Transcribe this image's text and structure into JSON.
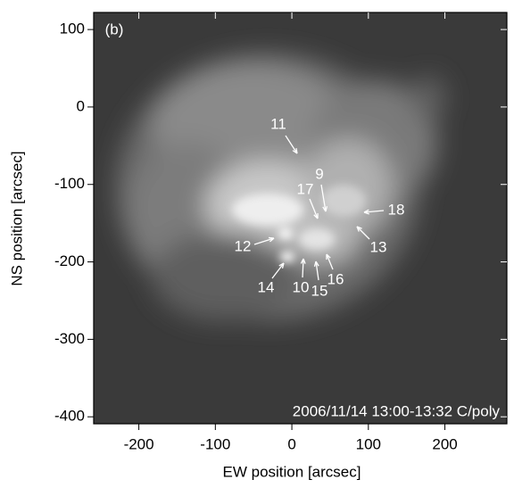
{
  "chart_data": {
    "type": "image",
    "xlabel": "EW position [arcsec]",
    "ylabel": "NS position [arcsec]",
    "xlim": [
      -259,
      281
    ],
    "xticks": [
      -200,
      -100,
      0,
      100,
      200
    ],
    "ylim": [
      -409,
      122
    ],
    "yticks": [
      100,
      0,
      -100,
      -200,
      -300,
      -400
    ],
    "panel_label": "(b)",
    "caption": "2006/11/14 13:00-13:32  C/poly",
    "annotations": [
      "11",
      "9",
      "17",
      "18",
      "12",
      "13",
      "14",
      "10",
      "15",
      "16"
    ]
  }
}
